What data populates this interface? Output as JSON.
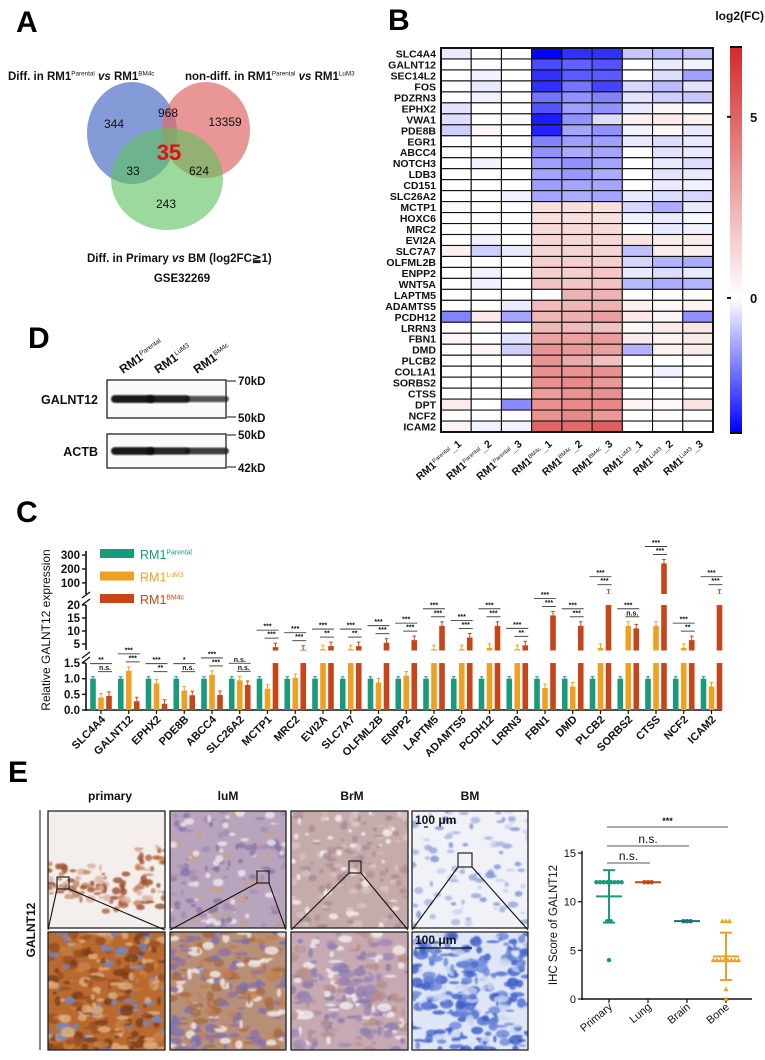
{
  "panels": {
    "a": "A",
    "b": "B",
    "c": "C",
    "d": "D",
    "e": "E"
  },
  "venn": {
    "title_left": [
      {
        "t": "Diff. in RM1"
      },
      {
        "t": "Parental",
        "sup": true
      },
      {
        "t": " "
      },
      {
        "t": "vs",
        "i": true
      },
      {
        "t": " RM1"
      },
      {
        "t": "BM4c",
        "sup": true
      }
    ],
    "title_right": [
      {
        "t": "non-diff. in RM1"
      },
      {
        "t": "Parental",
        "sup": true
      },
      {
        "t": " "
      },
      {
        "t": "vs",
        "i": true
      },
      {
        "t": " RM1"
      },
      {
        "t": "LuM3",
        "sup": true
      }
    ],
    "caption": [
      {
        "t": "Diff. in Primary "
      },
      {
        "t": "vs",
        "i": true
      },
      {
        "t": " BM (log2FC≧1)"
      }
    ],
    "dataset": "GSE32269",
    "counts": {
      "blue_only": "344",
      "blue_red": "968",
      "red_only": "13359",
      "all_three": "35",
      "blue_green": "33",
      "red_green": "624",
      "green_only": "243"
    },
    "colors": {
      "blue": "#5b79c9",
      "red": "#e06a6a",
      "green": "#5fc25f",
      "highlight": "#e01010"
    }
  },
  "western": {
    "lanes": [
      [
        {
          "t": "RM1"
        },
        {
          "t": "Parental",
          "sup": true
        }
      ],
      [
        {
          "t": "RM1"
        },
        {
          "t": "LuM3",
          "sup": true
        }
      ],
      [
        {
          "t": "RM1"
        },
        {
          "t": "BM4c",
          "sup": true
        }
      ]
    ],
    "blots": [
      {
        "protein": "GALNT12",
        "marker_top": "70kD",
        "marker_bottom": "50kD",
        "band_intensity": [
          1.0,
          0.95,
          0.6
        ]
      },
      {
        "protein": "ACTB",
        "marker_top": "50kD",
        "marker_bottom": "42kD",
        "band_intensity": [
          1.0,
          0.9,
          0.75
        ]
      }
    ]
  },
  "ihc": {
    "row_label": "GALNT12",
    "columns": [
      "primary",
      "luM",
      "BrM",
      "BM"
    ],
    "scale_bar_top": "100 μm",
    "scale_bar_bottom": "100 μm"
  },
  "chart_data": [
    {
      "type": "heatmap",
      "legend_title": "log2(FC)",
      "colorbar_ticks": [
        "5",
        "0"
      ],
      "colorbar_tick_values": [
        5,
        0
      ],
      "value_range": [
        -3.7,
        6.9
      ],
      "colors": {
        "low": "#0000ff",
        "mid": "#ffffff",
        "high": "#d42a2a"
      },
      "columns": [
        [
          {
            "t": "RM1"
          },
          {
            "t": "Parental",
            "sup": true
          },
          {
            "t": "_1"
          }
        ],
        [
          {
            "t": "RM1"
          },
          {
            "t": "Parental",
            "sup": true
          },
          {
            "t": "_2"
          }
        ],
        [
          {
            "t": "RM1"
          },
          {
            "t": "Parental",
            "sup": true
          },
          {
            "t": "_3"
          }
        ],
        [
          {
            "t": "RM1"
          },
          {
            "t": "BM4c",
            "sup": true
          },
          {
            "t": "_1"
          }
        ],
        [
          {
            "t": "RM1"
          },
          {
            "t": "BM4c",
            "sup": true
          },
          {
            "t": "_2"
          }
        ],
        [
          {
            "t": "RM1"
          },
          {
            "t": "BM4c",
            "sup": true
          },
          {
            "t": "_3"
          }
        ],
        [
          {
            "t": "RM1"
          },
          {
            "t": "LuM3",
            "sup": true
          },
          {
            "t": "_1"
          }
        ],
        [
          {
            "t": "RM1"
          },
          {
            "t": "LuM3",
            "sup": true
          },
          {
            "t": "_2"
          }
        ],
        [
          {
            "t": "RM1"
          },
          {
            "t": "LuM3",
            "sup": true
          },
          {
            "t": "_3"
          }
        ]
      ],
      "rows": [
        "SLC4A4",
        "GALNT12",
        "SEC14L2",
        "FOS",
        "PDZRN3",
        "EPHX2",
        "VWA1",
        "PDE8B",
        "EGR1",
        "ABCC4",
        "NOTCH3",
        "LDB3",
        "CD151",
        "SLC26A2",
        "MCTP1",
        "HOXC6",
        "MRC2",
        "EVI2A",
        "SLC7A7",
        "OLFML2B",
        "ENPP2",
        "WNT5A",
        "LAPTM5",
        "ADAMTS5",
        "PCDH12",
        "LRRN3",
        "FBN1",
        "DMD",
        "PLCB2",
        "COL1A1",
        "SORBS2",
        "CTSS",
        "DPT",
        "NCF2",
        "ICAM2"
      ],
      "values": [
        [
          -0.3,
          0,
          0,
          -3.7,
          -3,
          -3,
          -0.8,
          -1,
          -0.9
        ],
        [
          0,
          0,
          0,
          -2.6,
          -2.3,
          -2.5,
          0,
          -0.3,
          -0.2
        ],
        [
          0,
          -0.2,
          0,
          -3,
          -2.4,
          -2.4,
          0,
          -0.5,
          -1.4
        ],
        [
          0,
          -0.3,
          0,
          -3,
          -2,
          -2.7,
          -0.6,
          -1,
          -0.4
        ],
        [
          0,
          -0.2,
          0,
          -2,
          -1.6,
          -1.8,
          -0.4,
          -0.7,
          -0.8
        ],
        [
          -0.4,
          0,
          0,
          -2.5,
          -1.4,
          -1.6,
          -0.3,
          0.3,
          0
        ],
        [
          -0.5,
          0,
          0.2,
          -3.3,
          -1.6,
          -0.5,
          0.5,
          0.6,
          0.4
        ],
        [
          -0.7,
          0.3,
          0,
          -3.2,
          -1.3,
          -1.6,
          -0.2,
          0.3,
          -0.3
        ],
        [
          0,
          0,
          0,
          -1.8,
          -1.4,
          -1.4,
          -0.3,
          -0.5,
          -0.3
        ],
        [
          0,
          0,
          0,
          -1.6,
          -1.2,
          -1.3,
          0,
          -0.4,
          -0.3
        ],
        [
          0,
          -0.2,
          0,
          -1.4,
          -1.6,
          -1.3,
          0,
          -0.3,
          -0.5
        ],
        [
          0,
          0,
          0,
          -1.3,
          -1.5,
          -1.2,
          0,
          -0.4,
          -0.3
        ],
        [
          0,
          0,
          0,
          -1.4,
          -1.3,
          -1.3,
          0,
          -0.3,
          -0.2
        ],
        [
          0,
          0,
          -0.2,
          -1.3,
          -1.2,
          -1.3,
          -0.3,
          -0.5,
          -0.6
        ],
        [
          0.2,
          0,
          0,
          1,
          1,
          1,
          -0.6,
          -1.2,
          -0.3
        ],
        [
          0,
          0,
          0,
          1,
          1,
          1,
          -0.2,
          -0.3,
          -0.1
        ],
        [
          0,
          0,
          0,
          1.2,
          1.2,
          1.2,
          0,
          -0.3,
          -0.2
        ],
        [
          0,
          -0.2,
          0,
          1.3,
          1.3,
          1.3,
          0.9,
          0.6,
          0.6
        ],
        [
          0.5,
          -0.7,
          -0.3,
          1.4,
          1.4,
          1.4,
          -0.9,
          0.6,
          0.5
        ],
        [
          0,
          0,
          0,
          1.6,
          1.6,
          1.6,
          -0.6,
          -1.1,
          -1.2
        ],
        [
          0,
          -0.2,
          0,
          1.6,
          1.6,
          1.8,
          -0.3,
          -0.5,
          -0.3
        ],
        [
          0,
          -0.2,
          0,
          2,
          1.8,
          2,
          -1,
          -1.2,
          -1.1
        ],
        [
          0,
          0,
          0,
          0.1,
          2.5,
          2.5,
          0,
          0,
          0
        ],
        [
          0,
          0,
          -0.3,
          2.2,
          2.4,
          2.5,
          0.5,
          0.3,
          0.4
        ],
        [
          -1.8,
          0.7,
          -1.3,
          2.4,
          2.6,
          3.1,
          0.7,
          0.3,
          -1.6
        ],
        [
          0,
          0,
          0,
          2.3,
          2.2,
          2,
          0.2,
          0.6,
          0.8
        ],
        [
          0.3,
          0,
          -0.4,
          3,
          3,
          3.2,
          0.6,
          0.4,
          0.6
        ],
        [
          0,
          0.3,
          -0.7,
          3.5,
          3.3,
          3.1,
          -1.1,
          0.5,
          0.6
        ],
        [
          0,
          0,
          0,
          3.5,
          2.8,
          2,
          0,
          0,
          0
        ],
        [
          0,
          0,
          0,
          3.6,
          3.5,
          3.6,
          0,
          -0.2,
          0
        ],
        [
          0,
          0,
          0,
          3.6,
          3.8,
          3.3,
          0,
          0,
          0
        ],
        [
          0,
          0,
          0,
          3.2,
          3.5,
          3.6,
          0,
          0,
          0
        ],
        [
          0.6,
          0,
          -1.7,
          3.6,
          3.8,
          3.9,
          0.4,
          0.2,
          0.9
        ],
        [
          0,
          0,
          0,
          3.5,
          3.8,
          3.3,
          0,
          0,
          0
        ],
        [
          0.4,
          -0.2,
          -0.2,
          5,
          4.8,
          5.2,
          0,
          0,
          0
        ]
      ]
    },
    {
      "type": "bar",
      "ylabel": "Relative GALNT12 expression",
      "y_axis_segments": [
        {
          "range": [
            0,
            1.5
          ],
          "ticks": [
            "0.0",
            "0.5",
            "1.0",
            "1.5"
          ]
        },
        {
          "range": [
            2.5,
            20
          ],
          "ticks": [
            "5",
            "10",
            "15",
            "20"
          ]
        },
        {
          "range": [
            20,
            350
          ],
          "ticks": [
            "100",
            "200",
            "300"
          ]
        }
      ],
      "categories": [
        "SLC4A4",
        "GALNT12",
        "EPHX2",
        "PDE8B",
        "ABCC4",
        "SLC26A2",
        "MCTP1",
        "MRC2",
        "EVI2A",
        "SLC7A7",
        "OLFML2B",
        "ENPP2",
        "LAPTM5",
        "ADAMTS5",
        "PCDH12",
        "LRRN3",
        "FBN1",
        "DMD",
        "PLCB2",
        "SORBS2",
        "CTSS",
        "NCF2",
        "ICAM2"
      ],
      "series": [
        {
          "name": [
            {
              "t": "RM1"
            },
            {
              "t": "Parental",
              "sup": true
            }
          ],
          "color": "#1a9a7c",
          "values": [
            1,
            1,
            1,
            1,
            1,
            1,
            1,
            1,
            1,
            1,
            1,
            1,
            1,
            1,
            1,
            1,
            1,
            1,
            1,
            1,
            1,
            1,
            1
          ]
        },
        {
          "name": [
            {
              "t": "RM1"
            },
            {
              "t": "LuM3",
              "sup": true
            }
          ],
          "color": "#f0a020",
          "values": [
            0.4,
            1.25,
            0.85,
            0.62,
            1.12,
            0.95,
            0.68,
            1.02,
            3,
            3,
            0.88,
            1.1,
            3,
            3,
            3.5,
            3,
            0.7,
            0.75,
            3.5,
            12,
            12,
            3.5,
            0.75
          ]
        },
        {
          "name": [
            {
              "t": "RM1"
            },
            {
              "t": "BM4c",
              "sup": true
            }
          ],
          "color": "#c8451a",
          "values": [
            0.45,
            0.28,
            0.2,
            0.47,
            0.48,
            0.8,
            3.8,
            2.8,
            4.2,
            4.2,
            5.5,
            6.5,
            12,
            7.5,
            12,
            4.5,
            16,
            12,
            22,
            11,
            240,
            6.5,
            22
          ]
        }
      ],
      "significance": [
        [
          "**",
          "n.s."
        ],
        [
          "***",
          "***"
        ],
        [
          "***",
          "**"
        ],
        [
          "*",
          "n.s."
        ],
        [
          "***",
          "***"
        ],
        [
          "n.s.",
          "n.s."
        ],
        [
          "***",
          "***"
        ],
        [
          "***",
          "***"
        ],
        [
          "***",
          "**"
        ],
        [
          "***",
          "**"
        ],
        [
          "***",
          "***"
        ],
        [
          "***",
          "***"
        ],
        [
          "***",
          "***"
        ],
        [
          "***",
          "***"
        ],
        [
          "***",
          "***"
        ],
        [
          "***",
          "**"
        ],
        [
          "***",
          "***"
        ],
        [
          "***",
          "***"
        ],
        [
          "***",
          "***"
        ],
        [
          "***",
          "n.s."
        ],
        [
          "***",
          "***"
        ],
        [
          "***",
          "**"
        ],
        [
          "***",
          "***"
        ]
      ],
      "legend_position": "top-left"
    },
    {
      "type": "scatter",
      "ylabel": "IHC Score of GALNT12",
      "ylim": [
        0,
        15
      ],
      "yticks": [
        "0",
        "5",
        "10",
        "15"
      ],
      "categories": [
        "Primary",
        "Lung",
        "Brain",
        "Bone"
      ],
      "groups": [
        {
          "points": [
            12,
            12,
            12,
            12,
            12,
            12,
            12,
            12,
            8,
            8,
            4
          ],
          "color": "#1a9a7c",
          "marker": "circle"
        },
        {
          "points": [
            12,
            12,
            12
          ],
          "color": "#c8451a",
          "marker": "circle"
        },
        {
          "points": [
            8,
            8,
            8
          ],
          "color": "#1e6e7a",
          "marker": "circle"
        },
        {
          "points": [
            8,
            8,
            8,
            4,
            4,
            4,
            4,
            4,
            4,
            4,
            4,
            1,
            0
          ],
          "color": "#f0a020",
          "marker": "triangle"
        }
      ],
      "comparisons": [
        {
          "groups": [
            "Primary",
            "Bone"
          ],
          "label": "***"
        },
        {
          "groups": [
            "Primary",
            "Brain"
          ],
          "label": "n.s."
        },
        {
          "groups": [
            "Primary",
            "Lung"
          ],
          "label": "n.s."
        }
      ]
    }
  ]
}
